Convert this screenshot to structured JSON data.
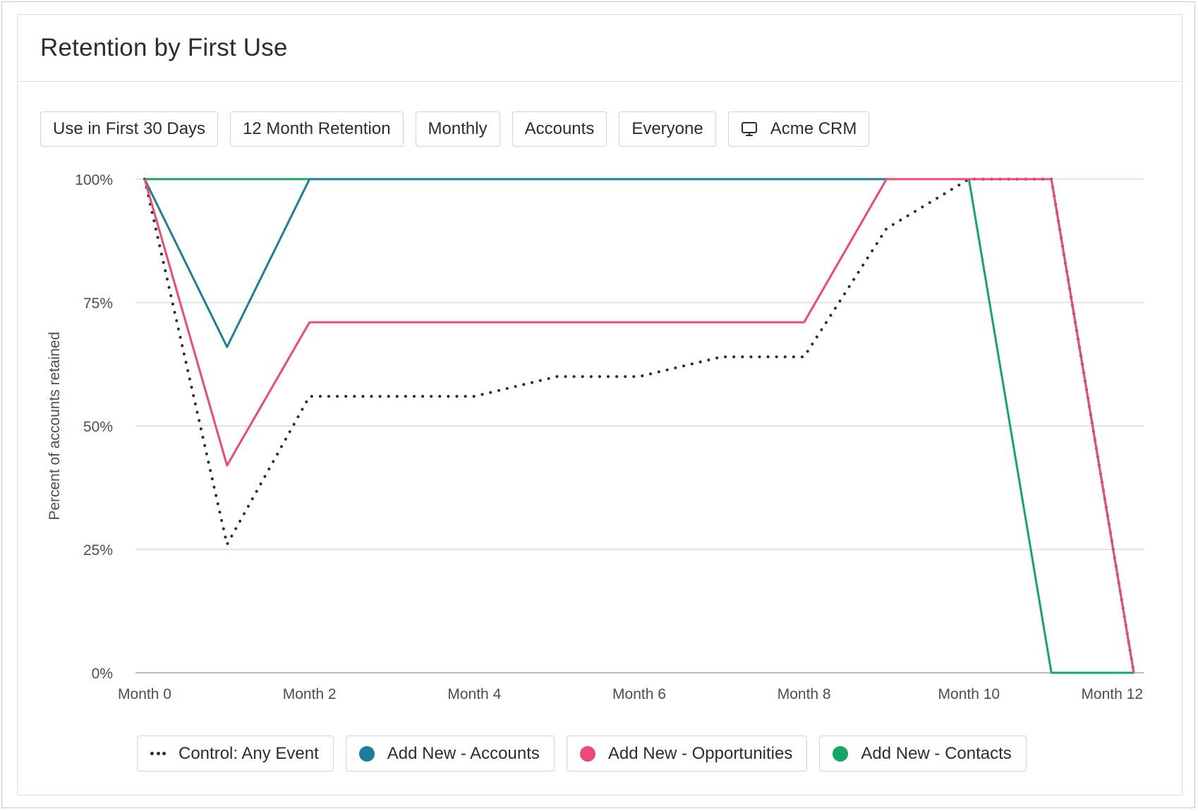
{
  "title": "Retention by First Use",
  "filters": [
    {
      "label": "Use in First 30 Days"
    },
    {
      "label": "12 Month Retention"
    },
    {
      "label": "Monthly"
    },
    {
      "label": "Accounts"
    },
    {
      "label": "Everyone"
    },
    {
      "label": "Acme CRM",
      "icon": "monitor-icon"
    }
  ],
  "chart_data": {
    "type": "line",
    "ylabel": "Percent of accounts retained",
    "xlabel": "",
    "ylim": [
      0,
      100
    ],
    "y_ticks": [
      0,
      25,
      50,
      75,
      100
    ],
    "y_tick_labels": [
      "0%",
      "25%",
      "50%",
      "75%",
      "100%"
    ],
    "x": [
      0,
      1,
      2,
      3,
      4,
      5,
      6,
      7,
      8,
      9,
      10,
      11,
      12
    ],
    "x_tick_values": [
      0,
      2,
      4,
      6,
      8,
      10,
      12
    ],
    "x_tick_labels": [
      "Month 0",
      "Month 2",
      "Month 4",
      "Month 6",
      "Month 8",
      "Month 10",
      "Month 12"
    ],
    "grid": true,
    "legend_position": "bottom",
    "series": [
      {
        "name": "Control: Any Event",
        "style": "dotted",
        "color": "#2a2d37",
        "values": [
          100,
          26,
          56,
          56,
          56,
          60,
          60,
          64,
          64,
          90,
          100,
          100,
          0
        ]
      },
      {
        "name": "Add New - Accounts",
        "style": "solid",
        "color": "#1a7f99",
        "values": [
          100,
          66,
          100,
          100,
          100,
          100,
          100,
          100,
          100,
          100,
          100,
          100,
          0
        ]
      },
      {
        "name": "Add New - Opportunities",
        "style": "solid",
        "color": "#f04876",
        "values": [
          100,
          42,
          71,
          71,
          71,
          71,
          71,
          71,
          71,
          100,
          100,
          100,
          0
        ]
      },
      {
        "name": "Add New - Contacts",
        "style": "solid",
        "color": "#14a763",
        "values": [
          100,
          100,
          100,
          100,
          100,
          100,
          100,
          100,
          100,
          100,
          100,
          0,
          0
        ]
      }
    ]
  },
  "legend": [
    {
      "label": "Control: Any Event",
      "marker": "dots-icon"
    },
    {
      "label": "Add New - Accounts",
      "color": "#1a7f99"
    },
    {
      "label": "Add New - Opportunities",
      "color": "#f04876"
    },
    {
      "label": "Add New - Contacts",
      "color": "#14a763"
    }
  ]
}
